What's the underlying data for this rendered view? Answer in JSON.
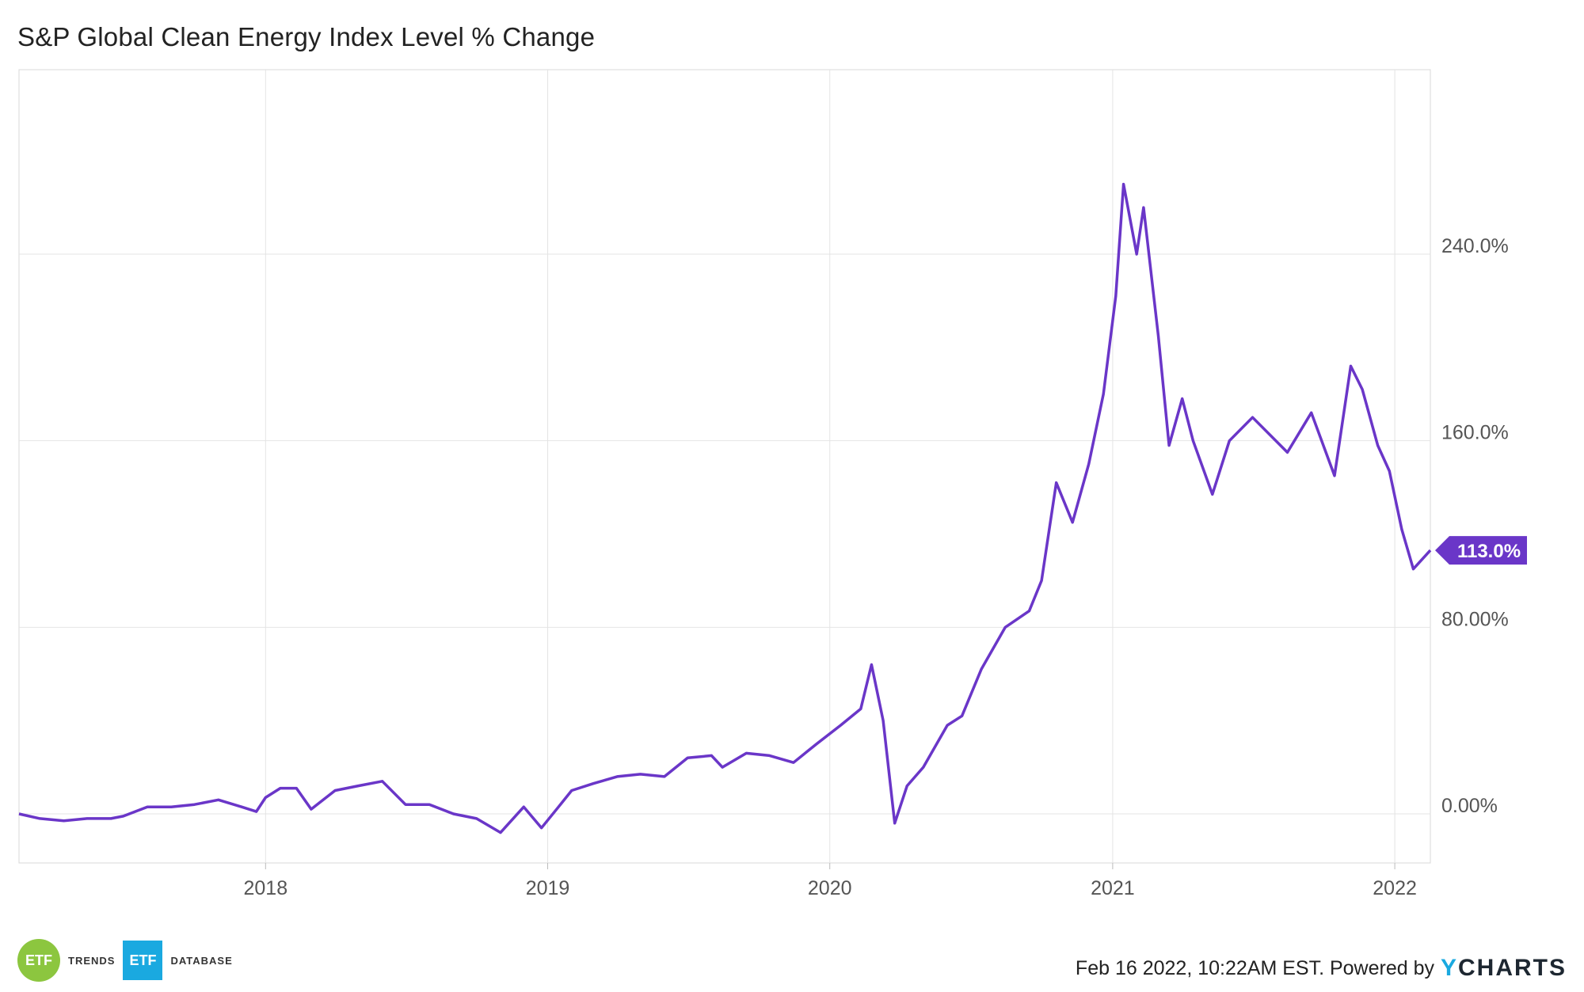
{
  "chart_data": {
    "type": "line",
    "title": "S&P Global Clean Energy Index Level % Change",
    "xlabel": "",
    "ylabel": "",
    "x_ticks": [
      "2018",
      "2019",
      "2020",
      "2021",
      "2022"
    ],
    "y_ticks": [
      "0.00%",
      "80.00%",
      "160.0%",
      "240.0%"
    ],
    "ylim": [
      -20,
      300
    ],
    "grid": true,
    "legend": "none",
    "last_value_label": "113.0%",
    "series": [
      {
        "color": "#6a36c8",
        "points": [
          [
            "2017-02-16",
            0
          ],
          [
            "2017-03-15",
            -2
          ],
          [
            "2017-04-15",
            -3
          ],
          [
            "2017-05-15",
            -2
          ],
          [
            "2017-06-15",
            -2
          ],
          [
            "2017-07-01",
            -1
          ],
          [
            "2017-08-01",
            3
          ],
          [
            "2017-09-01",
            3
          ],
          [
            "2017-10-01",
            4
          ],
          [
            "2017-11-01",
            6
          ],
          [
            "2017-12-01",
            3
          ],
          [
            "2017-12-20",
            1
          ],
          [
            "2018-01-01",
            7
          ],
          [
            "2018-01-20",
            11
          ],
          [
            "2018-02-10",
            11
          ],
          [
            "2018-03-01",
            2
          ],
          [
            "2018-04-01",
            10
          ],
          [
            "2018-05-01",
            12
          ],
          [
            "2018-06-01",
            14
          ],
          [
            "2018-07-01",
            4
          ],
          [
            "2018-08-01",
            4
          ],
          [
            "2018-09-01",
            0
          ],
          [
            "2018-10-01",
            -2
          ],
          [
            "2018-11-01",
            -8
          ],
          [
            "2018-12-01",
            3
          ],
          [
            "2018-12-24",
            -6
          ],
          [
            "2019-01-15",
            3
          ],
          [
            "2019-02-01",
            10
          ],
          [
            "2019-03-01",
            13
          ],
          [
            "2019-04-01",
            16
          ],
          [
            "2019-05-01",
            17
          ],
          [
            "2019-06-01",
            16
          ],
          [
            "2019-07-01",
            24
          ],
          [
            "2019-08-01",
            25
          ],
          [
            "2019-08-15",
            20
          ],
          [
            "2019-09-15",
            26
          ],
          [
            "2019-10-15",
            25
          ],
          [
            "2019-11-15",
            22
          ],
          [
            "2019-12-15",
            30
          ],
          [
            "2020-01-15",
            38
          ],
          [
            "2020-02-10",
            45
          ],
          [
            "2020-02-24",
            64
          ],
          [
            "2020-03-10",
            40
          ],
          [
            "2020-03-25",
            -4
          ],
          [
            "2020-04-10",
            12
          ],
          [
            "2020-05-01",
            20
          ],
          [
            "2020-06-01",
            38
          ],
          [
            "2020-06-20",
            42
          ],
          [
            "2020-07-15",
            62
          ],
          [
            "2020-08-15",
            80
          ],
          [
            "2020-09-15",
            87
          ],
          [
            "2020-10-01",
            100
          ],
          [
            "2020-10-20",
            142
          ],
          [
            "2020-11-10",
            125
          ],
          [
            "2020-12-01",
            150
          ],
          [
            "2020-12-20",
            180
          ],
          [
            "2021-01-05",
            222
          ],
          [
            "2021-01-15",
            270
          ],
          [
            "2021-02-01",
            240
          ],
          [
            "2021-02-10",
            260
          ],
          [
            "2021-03-01",
            205
          ],
          [
            "2021-03-15",
            158
          ],
          [
            "2021-04-01",
            178
          ],
          [
            "2021-04-15",
            160
          ],
          [
            "2021-05-10",
            137
          ],
          [
            "2021-06-01",
            160
          ],
          [
            "2021-07-01",
            170
          ],
          [
            "2021-08-15",
            155
          ],
          [
            "2021-09-15",
            172
          ],
          [
            "2021-10-15",
            145
          ],
          [
            "2021-11-05",
            192
          ],
          [
            "2021-11-20",
            182
          ],
          [
            "2021-12-10",
            158
          ],
          [
            "2021-12-25",
            147
          ],
          [
            "2022-01-10",
            122
          ],
          [
            "2022-01-25",
            105
          ],
          [
            "2022-02-16",
            113
          ]
        ]
      }
    ]
  },
  "footer": {
    "logo1_short": "ETF",
    "logo1_word": "TRENDS",
    "logo2_short": "ETF",
    "logo2_word": "DATABASE",
    "credit_text": "Feb 16 2022, 10:22AM EST. Powered by",
    "ycharts_y": "Y",
    "ycharts_rest": "CHARTS"
  }
}
